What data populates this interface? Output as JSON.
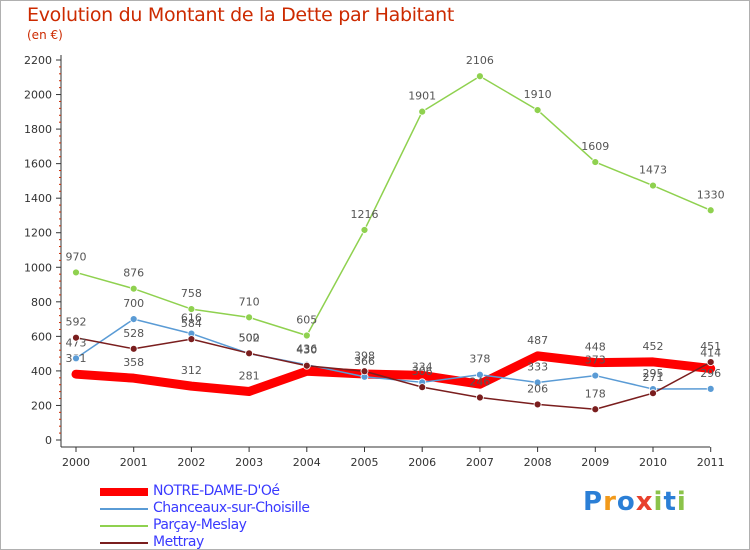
{
  "title": "Evolution du Montant de la Dette par Habitant",
  "subtitle": "(en €)",
  "chart_data": {
    "type": "line",
    "title": "Evolution du Montant de la Dette par Habitant",
    "subtitle": "(en €)",
    "x": [
      "2000",
      "2001",
      "2002",
      "2003",
      "2004",
      "2005",
      "2006",
      "2007",
      "2008",
      "2009",
      "2010",
      "2011"
    ],
    "ylim": [
      0,
      2200
    ],
    "yticks": [
      "0",
      "200",
      "400",
      "600",
      "800",
      "1000",
      "1200",
      "1400",
      "1600",
      "1800",
      "2000",
      "2200"
    ],
    "grid": false,
    "series": [
      {
        "name": "NOTRE-DAME-D'Oé",
        "color": "#ff0000",
        "values": [
          381,
          358,
          312,
          281,
          398,
          382,
          374,
          323,
          487,
          448,
          452,
          414
        ],
        "labels": [
          "381",
          "358",
          "312",
          "281",
          "",
          "",
          "",
          "",
          "487",
          "448",
          "452",
          "414"
        ]
      },
      {
        "name": "Chanceaux-sur-Choisille",
        "color": "#5a9bd5",
        "values": [
          473,
          700,
          616,
          500,
          436,
          366,
          334,
          378,
          333,
          373,
          295,
          296
        ],
        "labels": [
          "473",
          "700",
          "616",
          "500",
          "436",
          "366",
          "334",
          "378",
          "333",
          "373",
          "295",
          "296"
        ]
      },
      {
        "name": "Parçay-Meslay",
        "color": "#8fd14f",
        "values": [
          970,
          876,
          758,
          710,
          605,
          1216,
          1901,
          2106,
          1910,
          1609,
          1473,
          1330
        ],
        "labels": [
          "970",
          "876",
          "758",
          "710",
          "605",
          "1216",
          "1901",
          "2106",
          "1910",
          "1609",
          "1473",
          "1330"
        ]
      },
      {
        "name": "Mettray",
        "color": "#7a1e1e",
        "values": [
          592,
          528,
          584,
          502,
          430,
          398,
          306,
          246,
          206,
          178,
          271,
          451
        ],
        "labels": [
          "592",
          "528",
          "584",
          "502",
          "430",
          "398",
          "306",
          "246",
          "206",
          "178",
          "271",
          "451"
        ]
      }
    ]
  },
  "brand": {
    "letters": [
      "P",
      "r",
      "o",
      "x",
      "i",
      "t",
      "i"
    ],
    "colors": [
      "#2b7fd6",
      "#f29a1b",
      "#2b7fd6",
      "#e8402c",
      "#8bc34a",
      "#2b7fd6",
      "#8bc34a"
    ]
  }
}
